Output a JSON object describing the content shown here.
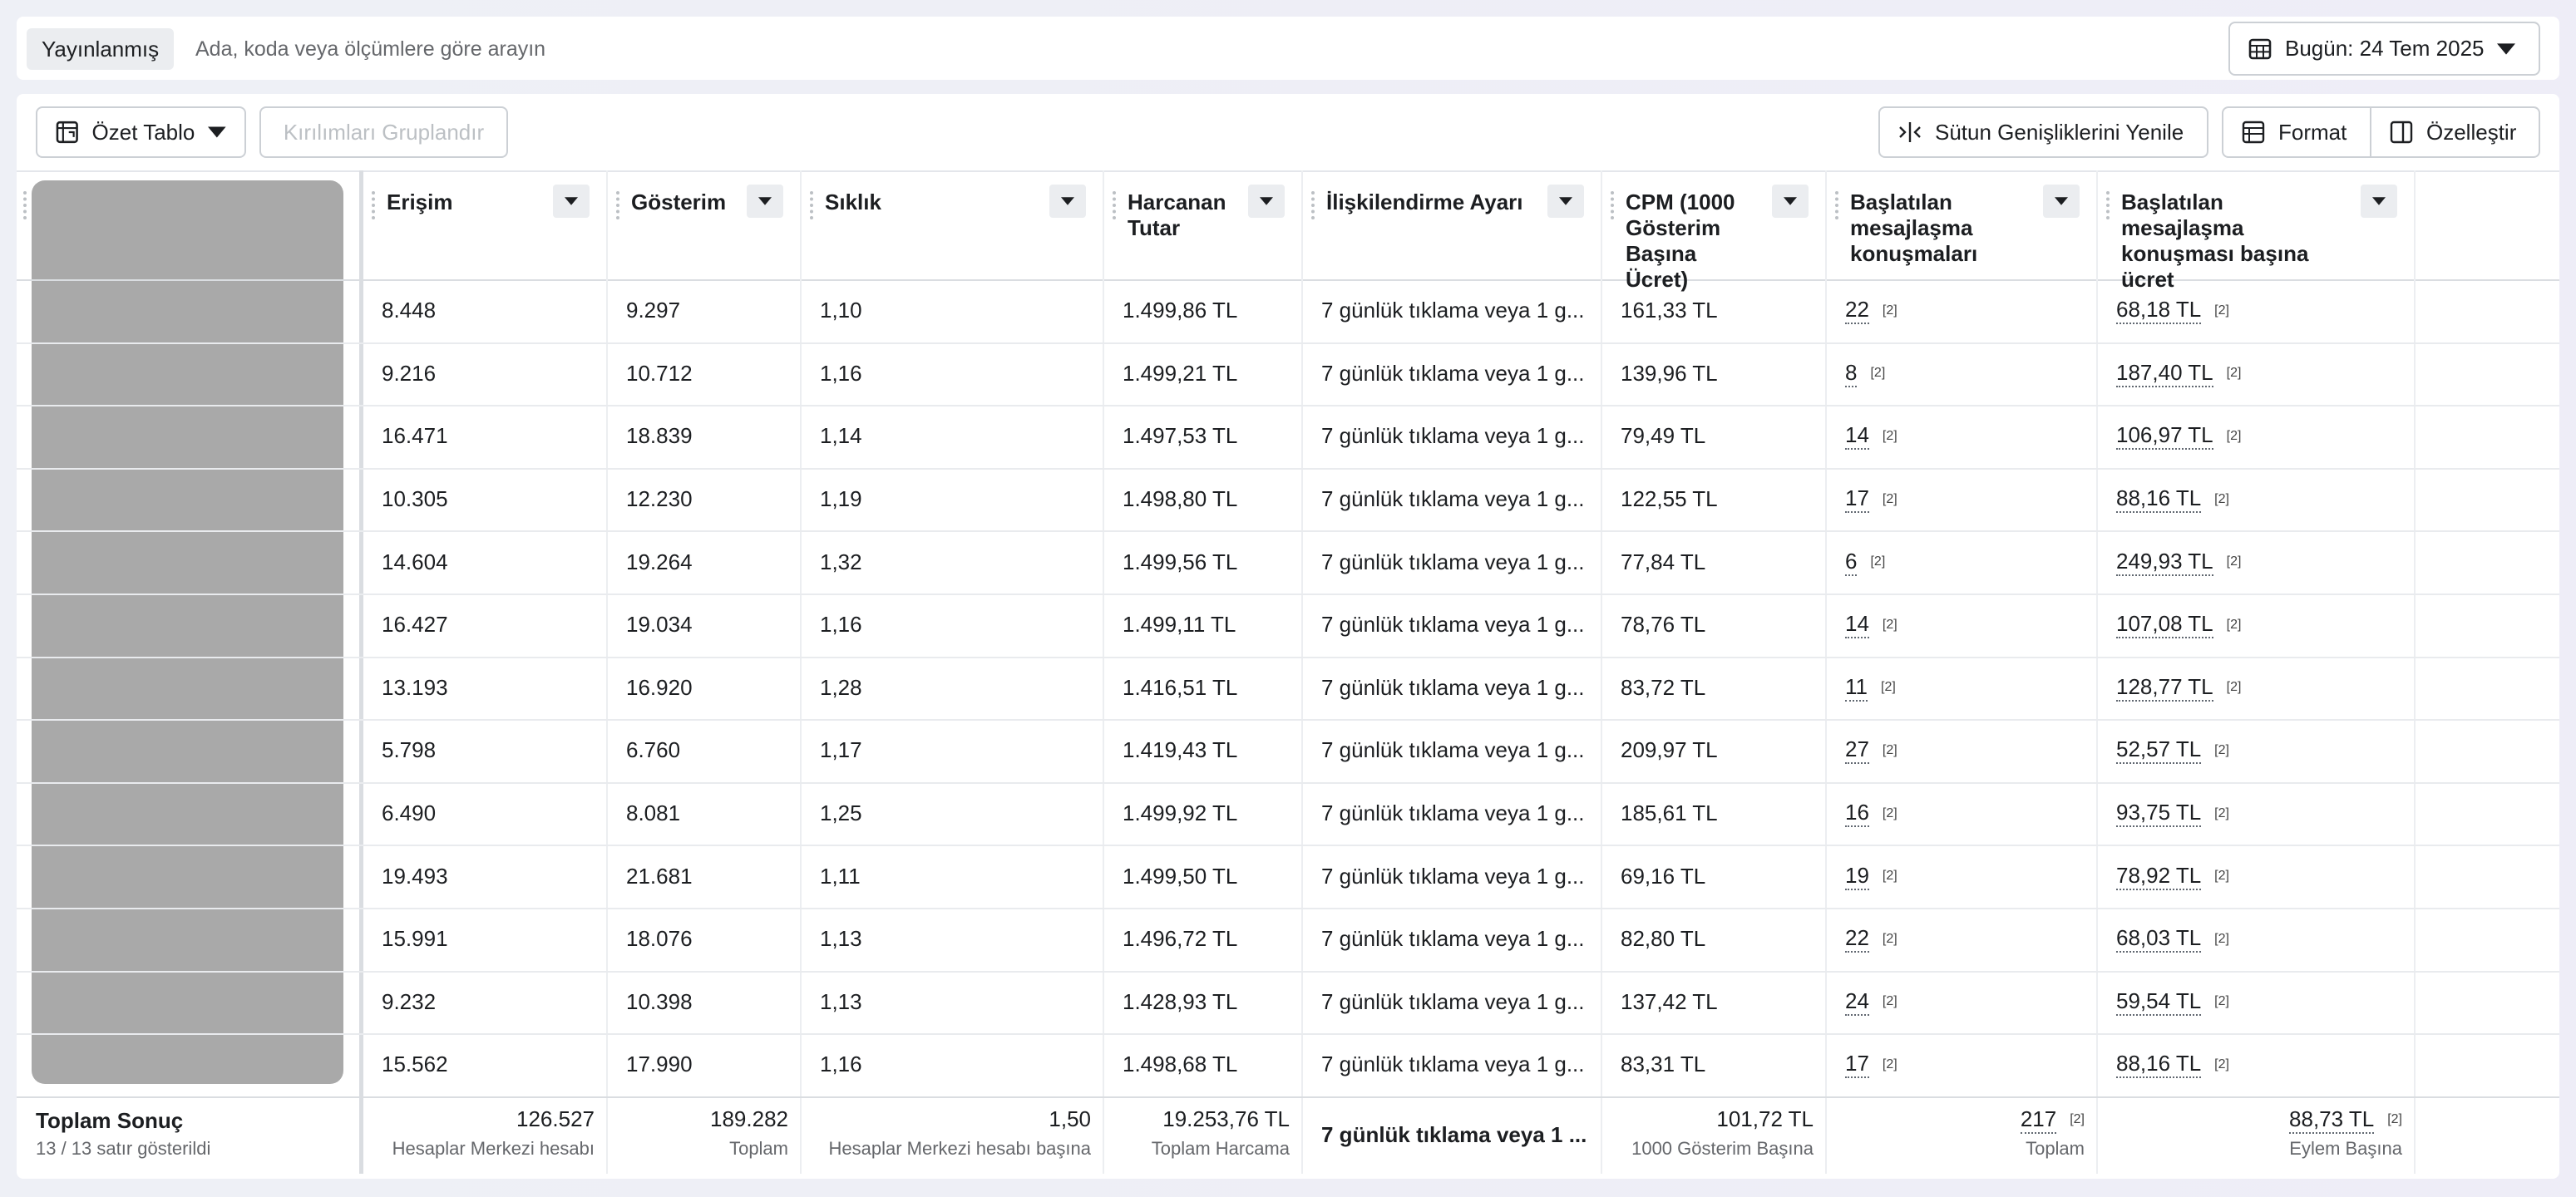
{
  "toolbar": {
    "status": "Yayınlanmış",
    "search_placeholder": "Ada, koda veya ölçümlere göre arayın",
    "date": "Bugün: 24 Tem 2025"
  },
  "actions": {
    "view": "Özet Tablo",
    "group": "Kırılımları Gruplandır",
    "reset_widths": "Sütun Genişliklerini Yenile",
    "format": "Format",
    "customize": "Özelleştir"
  },
  "table": {
    "headers": [
      "Erişim",
      "Gösterim",
      "Sıklık",
      "Harcanan Tutar",
      "İlişkilendirme Ayarı",
      "CPM (1000 Gösterim Başına Ücret)",
      "Başlatılan mesajlaşma konuşmaları",
      "Başlatılan mesajlaşma konuşması başına ücret"
    ],
    "rows": [
      [
        "8.448",
        "9.297",
        "1,10",
        "1.499,86 TL",
        "7 günlük tıklama veya 1 g...",
        "161,33 TL",
        {
          "text": "22",
          "note": "[2]"
        },
        {
          "text": "68,18 TL",
          "note": "[2]"
        }
      ],
      [
        "9.216",
        "10.712",
        "1,16",
        "1.499,21 TL",
        "7 günlük tıklama veya 1 g...",
        "139,96 TL",
        {
          "text": "8",
          "note": "[2]"
        },
        {
          "text": "187,40 TL",
          "note": "[2]"
        }
      ],
      [
        "16.471",
        "18.839",
        "1,14",
        "1.497,53 TL",
        "7 günlük tıklama veya 1 g...",
        "79,49 TL",
        {
          "text": "14",
          "note": "[2]"
        },
        {
          "text": "106,97 TL",
          "note": "[2]"
        }
      ],
      [
        "10.305",
        "12.230",
        "1,19",
        "1.498,80 TL",
        "7 günlük tıklama veya 1 g...",
        "122,55 TL",
        {
          "text": "17",
          "note": "[2]"
        },
        {
          "text": "88,16 TL",
          "note": "[2]"
        }
      ],
      [
        "14.604",
        "19.264",
        "1,32",
        "1.499,56 TL",
        "7 günlük tıklama veya 1 g...",
        "77,84 TL",
        {
          "text": "6",
          "note": "[2]"
        },
        {
          "text": "249,93 TL",
          "note": "[2]"
        }
      ],
      [
        "16.427",
        "19.034",
        "1,16",
        "1.499,11 TL",
        "7 günlük tıklama veya 1 g...",
        "78,76 TL",
        {
          "text": "14",
          "note": "[2]"
        },
        {
          "text": "107,08 TL",
          "note": "[2]"
        }
      ],
      [
        "13.193",
        "16.920",
        "1,28",
        "1.416,51 TL",
        "7 günlük tıklama veya 1 g...",
        "83,72 TL",
        {
          "text": "11",
          "note": "[2]"
        },
        {
          "text": "128,77 TL",
          "note": "[2]"
        }
      ],
      [
        "5.798",
        "6.760",
        "1,17",
        "1.419,43 TL",
        "7 günlük tıklama veya 1 g...",
        "209,97 TL",
        {
          "text": "27",
          "note": "[2]"
        },
        {
          "text": "52,57 TL",
          "note": "[2]"
        }
      ],
      [
        "6.490",
        "8.081",
        "1,25",
        "1.499,92 TL",
        "7 günlük tıklama veya 1 g...",
        "185,61 TL",
        {
          "text": "16",
          "note": "[2]"
        },
        {
          "text": "93,75 TL",
          "note": "[2]"
        }
      ],
      [
        "19.493",
        "21.681",
        "1,11",
        "1.499,50 TL",
        "7 günlük tıklama veya 1 g...",
        "69,16 TL",
        {
          "text": "19",
          "note": "[2]"
        },
        {
          "text": "78,92 TL",
          "note": "[2]"
        }
      ],
      [
        "15.991",
        "18.076",
        "1,13",
        "1.496,72 TL",
        "7 günlük tıklama veya 1 g...",
        "82,80 TL",
        {
          "text": "22",
          "note": "[2]"
        },
        {
          "text": "68,03 TL",
          "note": "[2]"
        }
      ],
      [
        "9.232",
        "10.398",
        "1,13",
        "1.428,93 TL",
        "7 günlük tıklama veya 1 g...",
        "137,42 TL",
        {
          "text": "24",
          "note": "[2]"
        },
        {
          "text": "59,54 TL",
          "note": "[2]"
        }
      ],
      [
        "15.562",
        "17.990",
        "1,16",
        "1.498,68 TL",
        "7 günlük tıklama veya 1 g...",
        "83,31 TL",
        {
          "text": "17",
          "note": "[2]"
        },
        {
          "text": "88,16 TL",
          "note": "[2]"
        }
      ]
    ],
    "footer": {
      "label": "Toplam Sonuç",
      "sublabel": "13 / 13 satır gösterildi",
      "cells": [
        {
          "value": "126.527",
          "caption": "Hesaplar Merkezi hesabı"
        },
        {
          "value": "189.282",
          "caption": "Toplam"
        },
        {
          "value": "1,50",
          "caption": "Hesaplar Merkezi hesabı başına"
        },
        {
          "value": "19.253,76 TL",
          "caption": "Toplam Harcama"
        },
        {
          "value": "7 günlük tıklama veya 1 ..."
        },
        {
          "value": "101,72 TL",
          "caption": "1000 Gösterim Başına"
        },
        {
          "value": "217",
          "note": "[2]",
          "caption": "Toplam"
        },
        {
          "value": "88,73 TL",
          "note": "[2]",
          "caption": "Eylem Başına"
        }
      ]
    }
  }
}
